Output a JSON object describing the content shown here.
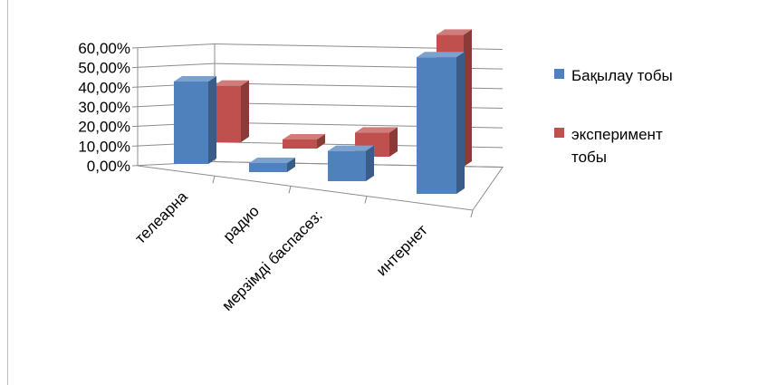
{
  "chart_data": {
    "type": "bar",
    "style": "3d-clustered-column",
    "categories": [
      "телеарна",
      "радио",
      "мерзімді баспасөз:",
      "интернет"
    ],
    "series": [
      {
        "name": "Бақылау тобы",
        "values": [
          0.35,
          0.03,
          0.1,
          0.58
        ],
        "color": "#4F81BD"
      },
      {
        "name": "эксперимент тобы",
        "values": [
          0.24,
          0.03,
          0.08,
          0.56
        ],
        "color": "#C0504D"
      }
    ],
    "y_ticks": [
      "0,00%",
      "10,00%",
      "20,00%",
      "30,00%",
      "40,00%",
      "50,00%",
      "60,00%"
    ],
    "ylim": [
      0,
      0.6
    ],
    "legend_position": "right",
    "grid": true
  }
}
